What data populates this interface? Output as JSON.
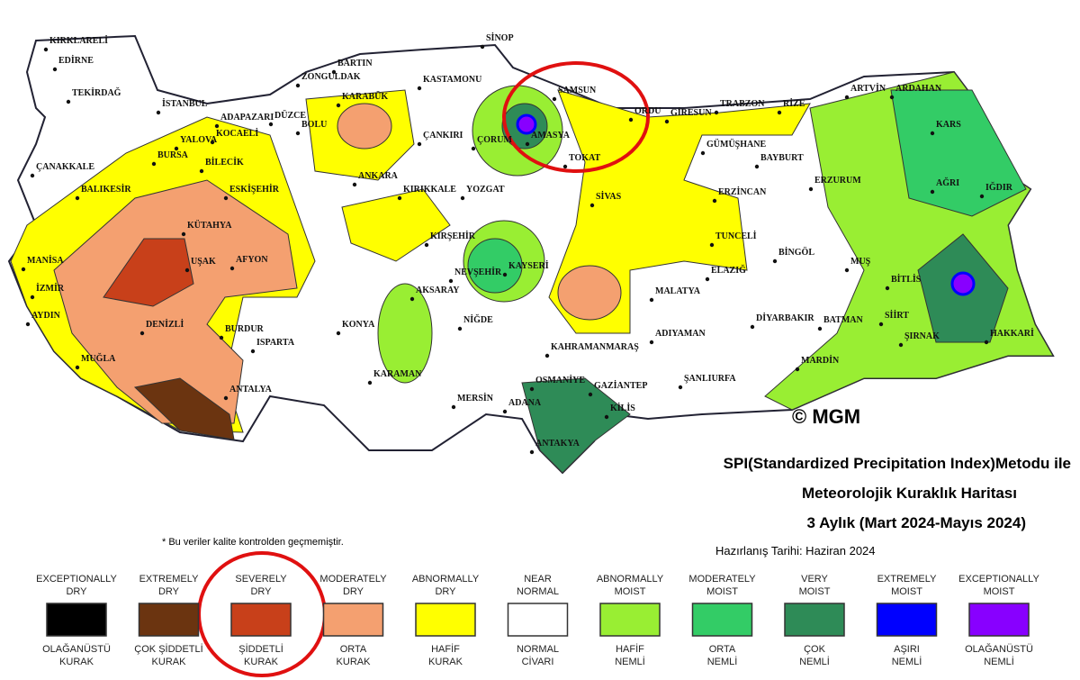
{
  "map": {
    "cities": [
      "KIRKLARELİ",
      "EDİRNE",
      "TEKİRDAĞ",
      "İSTANBUL",
      "ADAPAZARI",
      "DÜZCE",
      "BOLU",
      "ZONGULDAK",
      "BARTIN",
      "KARABÜK",
      "KASTAMONU",
      "SİNOP",
      "SAMSUN",
      "ORDU",
      "GİRESUN",
      "TRABZON",
      "RİZE",
      "ARTVİN",
      "ARDAHAN",
      "KARS",
      "AMASYA",
      "ÇORUM",
      "ÇANKIRI",
      "TOKAT",
      "GÜMÜŞHANE",
      "BAYBURT",
      "ERZURUM",
      "AĞRI",
      "IĞDIR",
      "ÇANAKKALE",
      "BURSA",
      "YALOVA",
      "KOCAELİ",
      "BİLECİK",
      "ESKİŞEHİR",
      "BALIKESİR",
      "ANKARA",
      "KIRIKKALE",
      "YOZGAT",
      "SİVAS",
      "ERZİNCAN",
      "KÜTAHYA",
      "TUNCELİ",
      "BİNGÖL",
      "MANİSA",
      "UŞAK",
      "AFYON",
      "KIRŞEHİR",
      "NEVŞEHİR",
      "KAYSERİ",
      "MUŞ",
      "İZMİR",
      "AKSARAY",
      "ELAZIĞ",
      "MALATYA",
      "BİTLİS",
      "AYDIN",
      "DENİZLİ",
      "BURDUR",
      "ISPARTA",
      "KONYA",
      "NİĞDE",
      "DİYARBAKIR",
      "BATMAN",
      "SİİRT",
      "ŞIRNAK",
      "HAKKARİ",
      "ADIYAMAN",
      "KAHRAMANMARAŞ",
      "MUĞLA",
      "MARDİN",
      "KARAMAN",
      "OSMANİYE",
      "GAZİANTEP",
      "ŞANLIURFA",
      "ANTALYA",
      "MERSİN",
      "ADANA",
      "KİLİS",
      "ANTAKYA"
    ],
    "copyright": "© MGM",
    "title": [
      "SPI(Standardized Precipitation Index)Metodu ile",
      "Meteorolojik Kuraklık Haritası",
      "3 Aylık (Mart 2024-Mayıs 2024)"
    ],
    "prepared": "Hazırlanış Tarihi: Haziran 2024",
    "note": "* Bu veriler kalite kontrolden geçmemiştir.",
    "legend": [
      {
        "en": [
          "EXCEPTIONALLY",
          "DRY"
        ],
        "tr": [
          "OLAĞANÜSTÜ",
          "KURAK"
        ],
        "color": "#000000"
      },
      {
        "en": [
          "EXTREMELY",
          "DRY"
        ],
        "tr": [
          "ÇOK ŞİDDETLİ",
          "KURAK"
        ],
        "color": "#6b3410"
      },
      {
        "en": [
          "SEVERELY",
          "DRY"
        ],
        "tr": [
          "ŞİDDETLİ",
          "KURAK"
        ],
        "color": "#c8401a"
      },
      {
        "en": [
          "MODERATELY",
          "DRY"
        ],
        "tr": [
          "ORTA",
          "KURAK"
        ],
        "color": "#f4a070"
      },
      {
        "en": [
          "ABNORMALLY",
          "DRY"
        ],
        "tr": [
          "HAFİF",
          "KURAK"
        ],
        "color": "#ffff00"
      },
      {
        "en": [
          "NEAR",
          "NORMAL"
        ],
        "tr": [
          "NORMAL",
          "CİVARI"
        ],
        "color": "#ffffff"
      },
      {
        "en": [
          "ABNORMALLY",
          "MOIST"
        ],
        "tr": [
          "HAFİF",
          "NEMLİ"
        ],
        "color": "#99ee33"
      },
      {
        "en": [
          "MODERATELY",
          "MOIST"
        ],
        "tr": [
          "ORTA",
          "NEMLİ"
        ],
        "color": "#33cc66"
      },
      {
        "en": [
          "VERY",
          "MOIST"
        ],
        "tr": [
          "ÇOK",
          "NEMLİ"
        ],
        "color": "#2e8b57"
      },
      {
        "en": [
          "EXTREMELY",
          "MOIST"
        ],
        "tr": [
          "AŞIRI",
          "NEMLİ"
        ],
        "color": "#0000ff"
      },
      {
        "en": [
          "EXCEPTIONALLY",
          "MOIST"
        ],
        "tr": [
          "OLAĞANÜSTÜ",
          "NEMLİ"
        ],
        "color": "#8800ff"
      }
    ]
  }
}
